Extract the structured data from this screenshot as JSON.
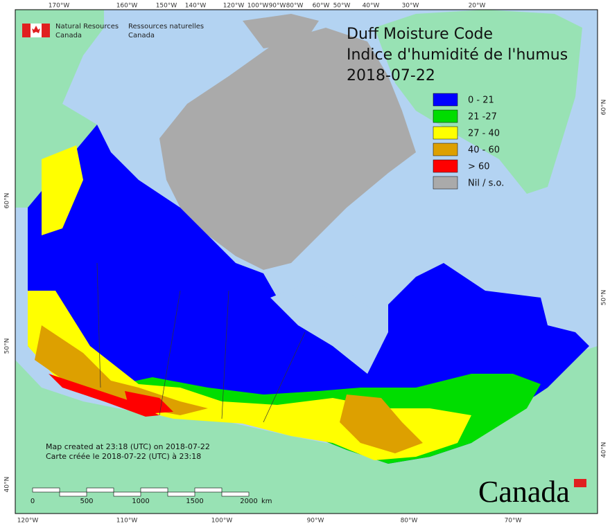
{
  "header": {
    "agency_en": "Natural Resources",
    "agency_en_2": "Canada",
    "agency_fr": "Ressources naturelles",
    "agency_fr_2": "Canada"
  },
  "title": {
    "line1": "Duff Moisture Code",
    "line2": "Indice d'humidité de l'humus",
    "date": "2018-07-22"
  },
  "legend": [
    {
      "label": "0 - 21",
      "color": "#0000ff"
    },
    {
      "label": "21 -27",
      "color": "#00dd00"
    },
    {
      "label": "27 - 40",
      "color": "#ffff00"
    },
    {
      "label": "40 - 60",
      "color": "#dda000"
    },
    {
      "label": "> 60",
      "color": "#ff0000"
    },
    {
      "label": "Nil / s.o.",
      "color": "#aaaaaa"
    }
  ],
  "graticule": {
    "top": [
      "170°W",
      "160°W",
      "150°W",
      "140°W",
      "120°W",
      "100°W",
      "90°W",
      "80°W",
      "60°W",
      "50°W",
      "40°W",
      "30°W",
      "20°W"
    ],
    "bottom": [
      "120°W",
      "110°W",
      "100°W",
      "90°W",
      "80°W",
      "70°W"
    ],
    "left": [
      "60°N",
      "50°N",
      "40°N"
    ],
    "right": [
      "60°N",
      "50°N",
      "40°N"
    ]
  },
  "footnote": {
    "line1": "Map created at 23:18 (UTC) on 2018-07-22",
    "line2": "Carte créée le 2018-07-22 (UTC) à 23:18"
  },
  "scale_bar": {
    "labels": [
      "0",
      "500",
      "1000",
      "1500",
      "2000"
    ],
    "unit": "km"
  },
  "wordmark": "Canada"
}
